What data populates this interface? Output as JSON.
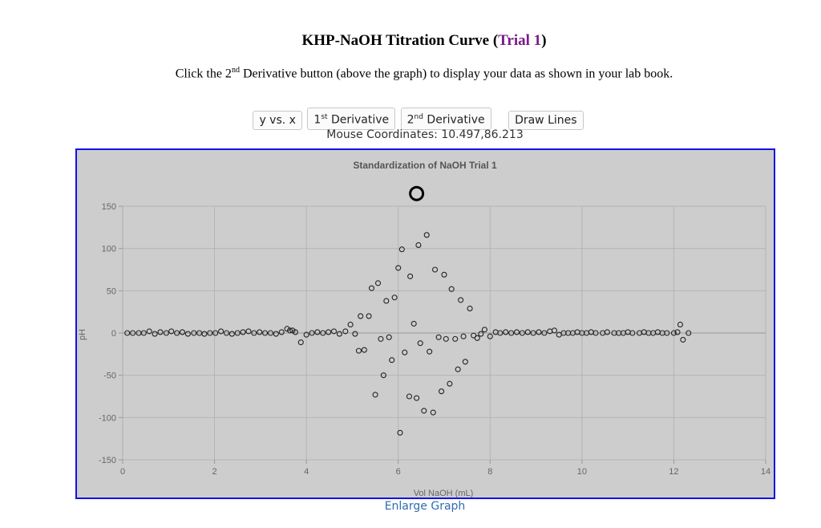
{
  "header": {
    "title_main": "KHP-NaOH Titration Curve (",
    "title_trial": "Trial 1",
    "title_close": ")",
    "instr_pre": "Click the 2",
    "instr_sup": "nd",
    "instr_post": " Derivative button (above the graph) to display your data as shown in your lab book."
  },
  "buttons": {
    "yx": "y vs. x",
    "first_num": "1",
    "first_sup": "st",
    "first_word": " Derivative",
    "second_num": "2",
    "second_sup": "nd",
    "second_word": " Derivative",
    "draw_lines": "Draw Lines"
  },
  "mouse_label": "Mouse Coordinates: 10.497,86.213",
  "enlarge_label": "Enlarge Graph",
  "colors": {
    "frame": "#1212e6",
    "plot_bg": "#cdcdcd",
    "grid": "#b4b4b4",
    "purple": "#7a1b8c",
    "link": "#2f6bb3"
  },
  "chart_data": {
    "type": "scatter",
    "title": "Standardization of NaOH Trial 1",
    "xlabel": "Vol NaOH (mL)",
    "ylabel": "pH",
    "xlim": [
      0,
      14
    ],
    "ylim": [
      -150,
      150
    ],
    "x_ticks": [
      0,
      2,
      4,
      6,
      8,
      10,
      12,
      14
    ],
    "y_ticks": [
      -150,
      -100,
      -50,
      0,
      50,
      100,
      150
    ],
    "grid": true,
    "points": [
      [
        0.1,
        0
      ],
      [
        0.22,
        0
      ],
      [
        0.35,
        0
      ],
      [
        0.46,
        0
      ],
      [
        0.58,
        2
      ],
      [
        0.7,
        -1
      ],
      [
        0.82,
        1
      ],
      [
        0.95,
        0
      ],
      [
        1.06,
        2
      ],
      [
        1.18,
        0
      ],
      [
        1.3,
        1
      ],
      [
        1.42,
        -1
      ],
      [
        1.55,
        0
      ],
      [
        1.67,
        0
      ],
      [
        1.78,
        -1
      ],
      [
        1.9,
        0
      ],
      [
        2.02,
        0
      ],
      [
        2.14,
        2
      ],
      [
        2.26,
        0
      ],
      [
        2.38,
        -1
      ],
      [
        2.5,
        0
      ],
      [
        2.62,
        1
      ],
      [
        2.74,
        2
      ],
      [
        2.86,
        0
      ],
      [
        2.98,
        1
      ],
      [
        3.1,
        0
      ],
      [
        3.22,
        0
      ],
      [
        3.34,
        -1
      ],
      [
        3.46,
        1
      ],
      [
        3.58,
        5
      ],
      [
        3.64,
        3
      ],
      [
        3.7,
        3
      ],
      [
        3.76,
        1
      ],
      [
        3.88,
        -11
      ],
      [
        4.0,
        -2
      ],
      [
        4.12,
        0
      ],
      [
        4.24,
        1
      ],
      [
        4.36,
        0
      ],
      [
        4.48,
        1
      ],
      [
        4.6,
        2
      ],
      [
        4.72,
        -1
      ],
      [
        4.85,
        2
      ],
      [
        4.96,
        10
      ],
      [
        5.06,
        -1
      ],
      [
        5.14,
        -21
      ],
      [
        5.18,
        20
      ],
      [
        5.26,
        -20
      ],
      [
        5.36,
        20
      ],
      [
        5.42,
        53
      ],
      [
        5.5,
        -73
      ],
      [
        5.56,
        59
      ],
      [
        5.62,
        -7
      ],
      [
        5.68,
        -50
      ],
      [
        5.74,
        38
      ],
      [
        5.8,
        -5
      ],
      [
        5.86,
        -32
      ],
      [
        5.92,
        42
      ],
      [
        6.0,
        77
      ],
      [
        6.04,
        -118
      ],
      [
        6.08,
        99
      ],
      [
        6.14,
        -23
      ],
      [
        6.24,
        -75
      ],
      [
        6.26,
        67
      ],
      [
        6.34,
        11
      ],
      [
        6.4,
        -77
      ],
      [
        6.44,
        104
      ],
      [
        6.48,
        -12
      ],
      [
        6.56,
        -92
      ],
      [
        6.62,
        116
      ],
      [
        6.68,
        -22
      ],
      [
        6.76,
        -94
      ],
      [
        6.8,
        75
      ],
      [
        6.88,
        -5
      ],
      [
        6.94,
        -69
      ],
      [
        7.0,
        69
      ],
      [
        7.04,
        -7
      ],
      [
        7.12,
        -60
      ],
      [
        7.16,
        52
      ],
      [
        7.24,
        -7
      ],
      [
        7.3,
        -43
      ],
      [
        7.36,
        39
      ],
      [
        7.42,
        -4
      ],
      [
        7.46,
        -34
      ],
      [
        7.56,
        29
      ],
      [
        7.64,
        -3
      ],
      [
        7.72,
        -6
      ],
      [
        7.8,
        -1
      ],
      [
        7.88,
        4
      ],
      [
        8.0,
        -4
      ],
      [
        8.12,
        1
      ],
      [
        8.22,
        0
      ],
      [
        8.34,
        1
      ],
      [
        8.46,
        0
      ],
      [
        8.58,
        1
      ],
      [
        8.7,
        0
      ],
      [
        8.82,
        1
      ],
      [
        8.94,
        0
      ],
      [
        9.06,
        1
      ],
      [
        9.18,
        0
      ],
      [
        9.3,
        2
      ],
      [
        9.4,
        3
      ],
      [
        9.5,
        -2
      ],
      [
        9.6,
        0
      ],
      [
        9.7,
        0
      ],
      [
        9.8,
        0
      ],
      [
        9.9,
        1
      ],
      [
        10.0,
        0
      ],
      [
        10.1,
        0
      ],
      [
        10.2,
        1
      ],
      [
        10.3,
        0
      ],
      [
        10.45,
        0
      ],
      [
        10.55,
        1
      ],
      [
        10.7,
        0
      ],
      [
        10.8,
        0
      ],
      [
        10.9,
        0
      ],
      [
        11.0,
        1
      ],
      [
        11.1,
        0
      ],
      [
        11.25,
        0
      ],
      [
        11.35,
        1
      ],
      [
        11.45,
        0
      ],
      [
        11.55,
        0
      ],
      [
        11.65,
        1
      ],
      [
        11.75,
        0
      ],
      [
        11.85,
        0
      ],
      [
        12.0,
        0
      ],
      [
        12.08,
        1
      ],
      [
        12.14,
        10
      ],
      [
        12.2,
        -8
      ],
      [
        12.32,
        0
      ]
    ],
    "marker": {
      "x": 6.4,
      "y": 165
    }
  }
}
